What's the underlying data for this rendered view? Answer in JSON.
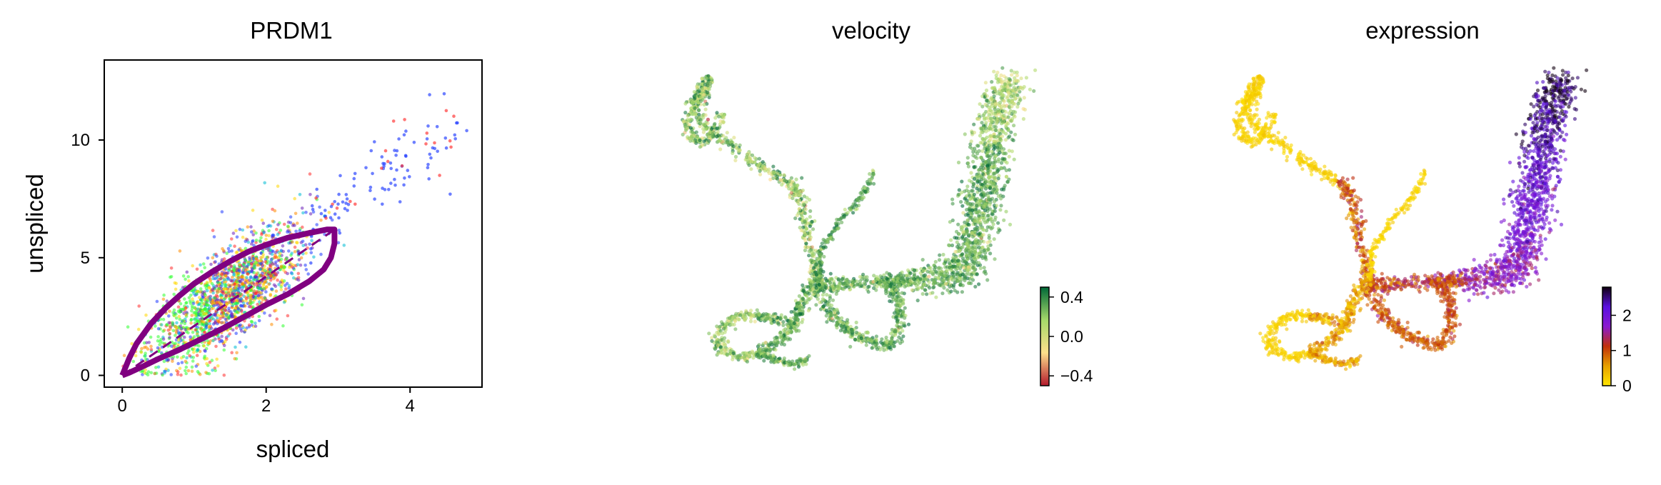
{
  "chart_data": [
    {
      "type": "scatter",
      "title": "PRDM1",
      "xlabel": "spliced",
      "ylabel": "unspliced",
      "xlim": [
        -0.25,
        5.0
      ],
      "ylim": [
        -0.5,
        13.4
      ],
      "xticks": [
        "0",
        "2",
        "4"
      ],
      "xtick_values": [
        0,
        2,
        4
      ],
      "yticks": [
        "0",
        "5",
        "10"
      ],
      "ytick_values": [
        0,
        5,
        10
      ],
      "point_colors": [
        "#1f3bff",
        "#ff2d2d",
        "#2dff2d",
        "#ffd700",
        "#6a1fb8",
        "#00bcd4",
        "#ff8c00"
      ],
      "fit_curve_color": "#800080",
      "steady_state_line": {
        "x": [
          0,
          3.0
        ],
        "y": [
          0,
          6.3
        ],
        "style": "dashed"
      },
      "fit_curve": {
        "upper": [
          [
            0,
            0
          ],
          [
            0.1,
            0.75
          ],
          [
            0.2,
            1.35
          ],
          [
            0.4,
            2.2
          ],
          [
            0.6,
            2.85
          ],
          [
            0.8,
            3.4
          ],
          [
            1.0,
            3.9
          ],
          [
            1.25,
            4.4
          ],
          [
            1.5,
            4.85
          ],
          [
            1.75,
            5.25
          ],
          [
            2.0,
            5.55
          ],
          [
            2.3,
            5.85
          ],
          [
            2.6,
            6.05
          ],
          [
            2.85,
            6.2
          ],
          [
            2.95,
            6.2
          ]
        ],
        "lower": [
          [
            2.95,
            6.2
          ],
          [
            2.95,
            5.6
          ],
          [
            2.9,
            5.0
          ],
          [
            2.8,
            4.5
          ],
          [
            2.6,
            4.0
          ],
          [
            2.3,
            3.45
          ],
          [
            2.0,
            3.0
          ],
          [
            1.7,
            2.5
          ],
          [
            1.4,
            2.0
          ],
          [
            1.1,
            1.55
          ],
          [
            0.8,
            1.1
          ],
          [
            0.5,
            0.7
          ],
          [
            0.3,
            0.4
          ],
          [
            0.1,
            0.12
          ],
          [
            0,
            0
          ]
        ]
      }
    },
    {
      "type": "scatter",
      "title": "velocity",
      "colorbar": {
        "ticks": [
          "0.4",
          "0.0",
          "−0.4"
        ],
        "tick_values": [
          0.4,
          0.0,
          -0.4
        ],
        "range": [
          -0.5,
          0.5
        ],
        "colors": [
          "#b2182b",
          "#fee08b",
          "#a6d96a",
          "#006837"
        ]
      },
      "dominant_color": "#1a7a3c"
    },
    {
      "type": "scatter",
      "title": "expression",
      "colorbar": {
        "ticks": [
          "2",
          "1",
          "0"
        ],
        "tick_values": [
          2,
          1,
          0
        ],
        "range": [
          0,
          2.8
        ],
        "colors": [
          "#ffe600",
          "#e6a000",
          "#c0300a",
          "#8a1ad0",
          "#5a10e0",
          "#100010"
        ]
      }
    }
  ]
}
